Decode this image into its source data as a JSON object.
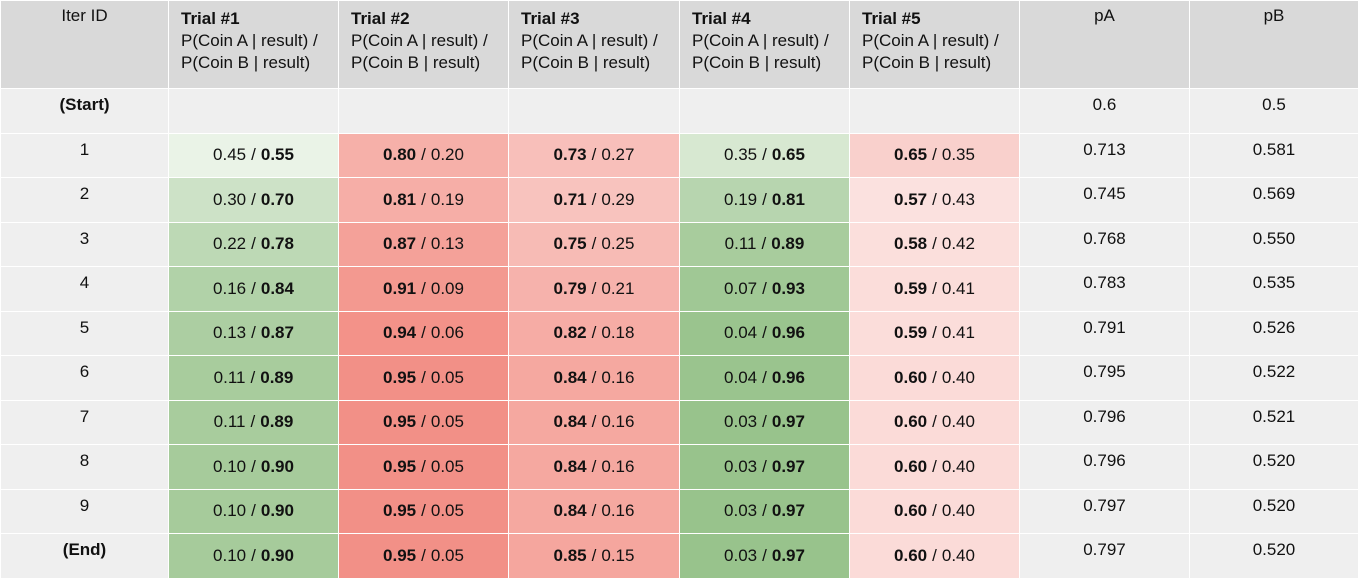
{
  "header": {
    "iter": "Iter ID",
    "trials": [
      {
        "title": "Trial #1",
        "line1": "P(Coin A | result) /",
        "line2": "P(Coin B | result)"
      },
      {
        "title": "Trial #2",
        "line1": "P(Coin A | result) /",
        "line2": "P(Coin B | result)"
      },
      {
        "title": "Trial #3",
        "line1": "P(Coin A | result) /",
        "line2": "P(Coin B | result)"
      },
      {
        "title": "Trial #4",
        "line1": "P(Coin A | result) /",
        "line2": "P(Coin B | result)"
      },
      {
        "title": "Trial #5",
        "line1": "P(Coin A | result) /",
        "line2": "P(Coin B | result)"
      }
    ],
    "pA": "pA",
    "pB": "pB"
  },
  "separator": "/",
  "rows": [
    {
      "label": "(Start)",
      "cells": [
        null,
        null,
        null,
        null,
        null
      ],
      "pA": "0.6",
      "pB": "0.5"
    },
    {
      "label": "1",
      "cells": [
        [
          "0.45",
          "0.55"
        ],
        [
          "0.80",
          "0.20"
        ],
        [
          "0.73",
          "0.27"
        ],
        [
          "0.35",
          "0.65"
        ],
        [
          "0.65",
          "0.35"
        ]
      ],
      "pA": "0.713",
      "pB": "0.581"
    },
    {
      "label": "2",
      "cells": [
        [
          "0.30",
          "0.70"
        ],
        [
          "0.81",
          "0.19"
        ],
        [
          "0.71",
          "0.29"
        ],
        [
          "0.19",
          "0.81"
        ],
        [
          "0.57",
          "0.43"
        ]
      ],
      "pA": "0.745",
      "pB": "0.569"
    },
    {
      "label": "3",
      "cells": [
        [
          "0.22",
          "0.78"
        ],
        [
          "0.87",
          "0.13"
        ],
        [
          "0.75",
          "0.25"
        ],
        [
          "0.11",
          "0.89"
        ],
        [
          "0.58",
          "0.42"
        ]
      ],
      "pA": "0.768",
      "pB": "0.550"
    },
    {
      "label": "4",
      "cells": [
        [
          "0.16",
          "0.84"
        ],
        [
          "0.91",
          "0.09"
        ],
        [
          "0.79",
          "0.21"
        ],
        [
          "0.07",
          "0.93"
        ],
        [
          "0.59",
          "0.41"
        ]
      ],
      "pA": "0.783",
      "pB": "0.535"
    },
    {
      "label": "5",
      "cells": [
        [
          "0.13",
          "0.87"
        ],
        [
          "0.94",
          "0.06"
        ],
        [
          "0.82",
          "0.18"
        ],
        [
          "0.04",
          "0.96"
        ],
        [
          "0.59",
          "0.41"
        ]
      ],
      "pA": "0.791",
      "pB": "0.526"
    },
    {
      "label": "6",
      "cells": [
        [
          "0.11",
          "0.89"
        ],
        [
          "0.95",
          "0.05"
        ],
        [
          "0.84",
          "0.16"
        ],
        [
          "0.04",
          "0.96"
        ],
        [
          "0.60",
          "0.40"
        ]
      ],
      "pA": "0.795",
      "pB": "0.522"
    },
    {
      "label": "7",
      "cells": [
        [
          "0.11",
          "0.89"
        ],
        [
          "0.95",
          "0.05"
        ],
        [
          "0.84",
          "0.16"
        ],
        [
          "0.03",
          "0.97"
        ],
        [
          "0.60",
          "0.40"
        ]
      ],
      "pA": "0.796",
      "pB": "0.521"
    },
    {
      "label": "8",
      "cells": [
        [
          "0.10",
          "0.90"
        ],
        [
          "0.95",
          "0.05"
        ],
        [
          "0.84",
          "0.16"
        ],
        [
          "0.03",
          "0.97"
        ],
        [
          "0.60",
          "0.40"
        ]
      ],
      "pA": "0.796",
      "pB": "0.520"
    },
    {
      "label": "9",
      "cells": [
        [
          "0.10",
          "0.90"
        ],
        [
          "0.95",
          "0.05"
        ],
        [
          "0.84",
          "0.16"
        ],
        [
          "0.03",
          "0.97"
        ],
        [
          "0.60",
          "0.40"
        ]
      ],
      "pA": "0.797",
      "pB": "0.520"
    },
    {
      "label": "(End)",
      "cells": [
        [
          "0.10",
          "0.90"
        ],
        [
          "0.95",
          "0.05"
        ],
        [
          "0.85",
          "0.15"
        ],
        [
          "0.03",
          "0.97"
        ],
        [
          "0.60",
          "0.40"
        ]
      ],
      "pA": "0.797",
      "pB": "0.520"
    }
  ]
}
